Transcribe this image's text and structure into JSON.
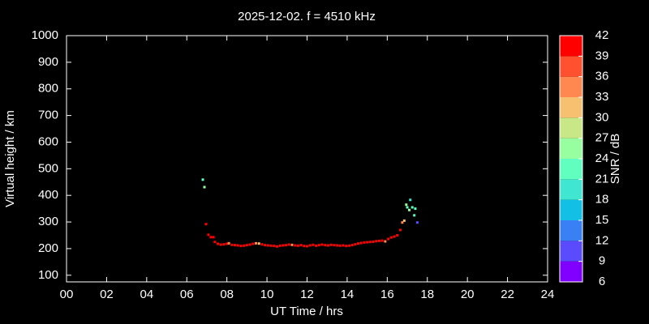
{
  "chart_data": {
    "type": "scatter",
    "title": "2025-12-02. f = 4510 kHz",
    "xlabel": "UT Time / hrs",
    "ylabel": "Virtual height / km",
    "xlim": [
      0,
      24
    ],
    "xticks": [
      {
        "value": 0,
        "label": "00"
      },
      {
        "value": 2,
        "label": "02"
      },
      {
        "value": 4,
        "label": "04"
      },
      {
        "value": 6,
        "label": "06"
      },
      {
        "value": 8,
        "label": "08"
      },
      {
        "value": 10,
        "label": "10"
      },
      {
        "value": 12,
        "label": "12"
      },
      {
        "value": 14,
        "label": "14"
      },
      {
        "value": 16,
        "label": "16"
      },
      {
        "value": 18,
        "label": "18"
      },
      {
        "value": 20,
        "label": "20"
      },
      {
        "value": 22,
        "label": "22"
      },
      {
        "value": 24,
        "label": "24"
      }
    ],
    "ylim": [
      75,
      1000
    ],
    "yticks": [
      100,
      200,
      300,
      400,
      500,
      600,
      700,
      800,
      900,
      1000
    ],
    "colorbar": {
      "label": "SNR / dB",
      "lim": [
        6,
        42
      ],
      "ticks": [
        6,
        9,
        12,
        15,
        18,
        21,
        24,
        27,
        30,
        33,
        36,
        39,
        42
      ],
      "colors": [
        "#8000ff",
        "#5a4cfc",
        "#3a80f5",
        "#12c0e6",
        "#40e6d0",
        "#60ffc0",
        "#98ffa0",
        "#c8e888",
        "#f5c070",
        "#ff8850",
        "#ff5030",
        "#ff0000"
      ]
    },
    "series": [
      {
        "x": [
          6.8,
          6.88,
          6.96,
          7.08,
          7.2,
          7.33,
          7.4,
          7.55,
          7.7,
          7.85,
          8.0,
          8.1,
          8.25,
          8.4,
          8.55,
          8.7,
          8.85,
          9.0,
          9.15,
          9.3,
          9.45,
          9.6,
          9.75,
          9.9,
          10.05,
          10.2,
          10.35,
          10.5,
          10.65,
          10.8,
          10.95,
          11.1,
          11.25,
          11.4,
          11.55,
          11.7,
          11.85,
          12.0,
          12.15,
          12.3,
          12.45,
          12.6,
          12.75,
          12.9,
          13.05,
          13.2,
          13.35,
          13.5,
          13.65,
          13.8,
          13.95,
          14.1,
          14.25,
          14.4,
          14.55,
          14.7,
          14.85,
          15.0,
          15.15,
          15.3,
          15.45,
          15.6,
          15.75,
          15.9,
          16.05,
          16.2,
          16.35,
          16.5,
          16.65,
          16.75,
          16.85,
          16.95,
          17.0,
          17.1,
          17.15,
          17.25,
          17.35,
          17.4,
          17.5
        ],
        "values": [
          459,
          431,
          292,
          252,
          243,
          243,
          225,
          218,
          215,
          216,
          218,
          220,
          214,
          213,
          212,
          210,
          211,
          213,
          215,
          218,
          220,
          219,
          216,
          213,
          212,
          211,
          210,
          208,
          211,
          212,
          213,
          215,
          214,
          212,
          211,
          213,
          210,
          209,
          212,
          214,
          211,
          213,
          215,
          213,
          212,
          214,
          213,
          212,
          211,
          212,
          210,
          211,
          213,
          216,
          219,
          221,
          223,
          224,
          225,
          226,
          228,
          229,
          230,
          227,
          236,
          242,
          245,
          250,
          270,
          298,
          305,
          365,
          355,
          345,
          383,
          355,
          325,
          350,
          298
        ],
        "snr": [
          22,
          24,
          40,
          40,
          40,
          39,
          40,
          40,
          39,
          40,
          40,
          34,
          40,
          40,
          39,
          40,
          40,
          40,
          39,
          40,
          34,
          32,
          40,
          40,
          39,
          40,
          40,
          40,
          39,
          40,
          40,
          39,
          34,
          40,
          40,
          39,
          40,
          40,
          40,
          39,
          40,
          40,
          40,
          39,
          40,
          40,
          40,
          39,
          40,
          40,
          40,
          39,
          40,
          40,
          40,
          39,
          40,
          40,
          39,
          40,
          40,
          39,
          40,
          34,
          40,
          40,
          39,
          40,
          40,
          33,
          30,
          24,
          22,
          24,
          20,
          21,
          22,
          21,
          10
        ]
      }
    ]
  }
}
